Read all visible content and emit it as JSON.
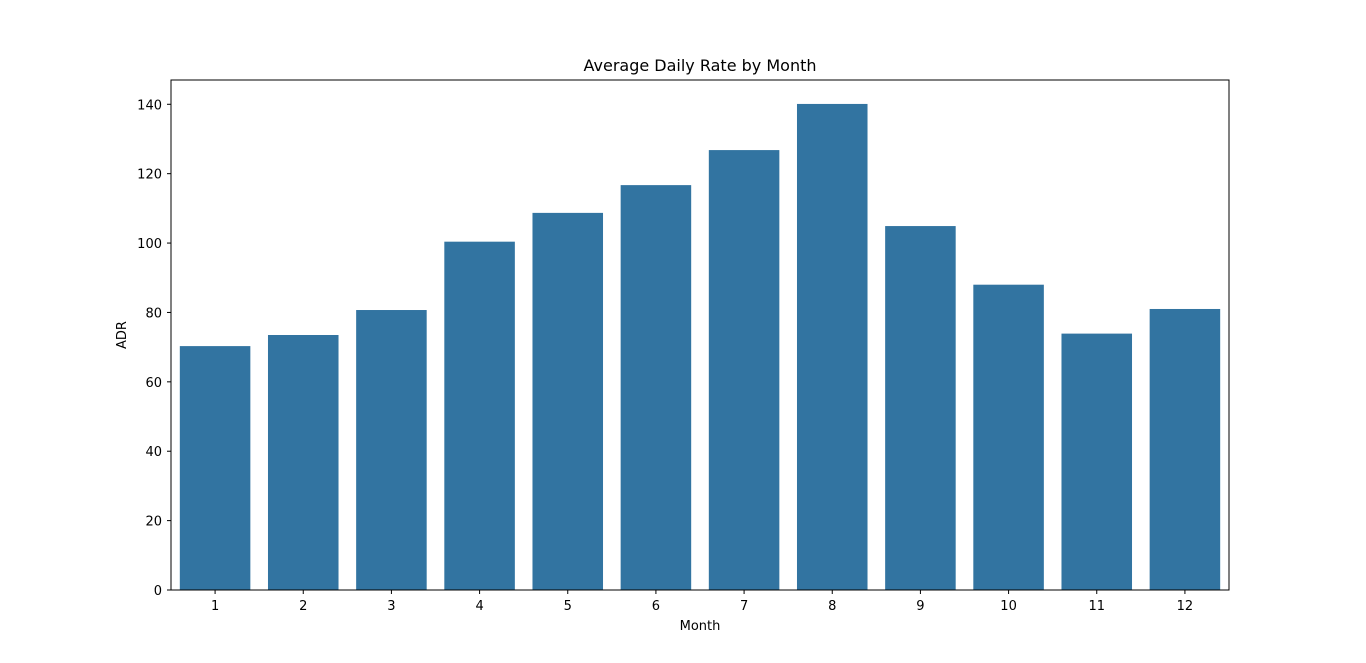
{
  "chart_data": {
    "type": "bar",
    "title": "Average Daily Rate by Month",
    "xlabel": "Month",
    "ylabel": "ADR",
    "categories": [
      "1",
      "2",
      "3",
      "4",
      "5",
      "6",
      "7",
      "8",
      "9",
      "10",
      "11",
      "12"
    ],
    "values": [
      70.3,
      73.5,
      80.7,
      100.4,
      108.7,
      116.7,
      126.8,
      140.1,
      104.9,
      88.0,
      73.9,
      81.0
    ],
    "ylim": [
      0,
      147
    ],
    "yticks": [
      0,
      20,
      40,
      60,
      80,
      100,
      120,
      140
    ],
    "bar_color": "#3274a1",
    "grid": false,
    "legend": "none"
  }
}
